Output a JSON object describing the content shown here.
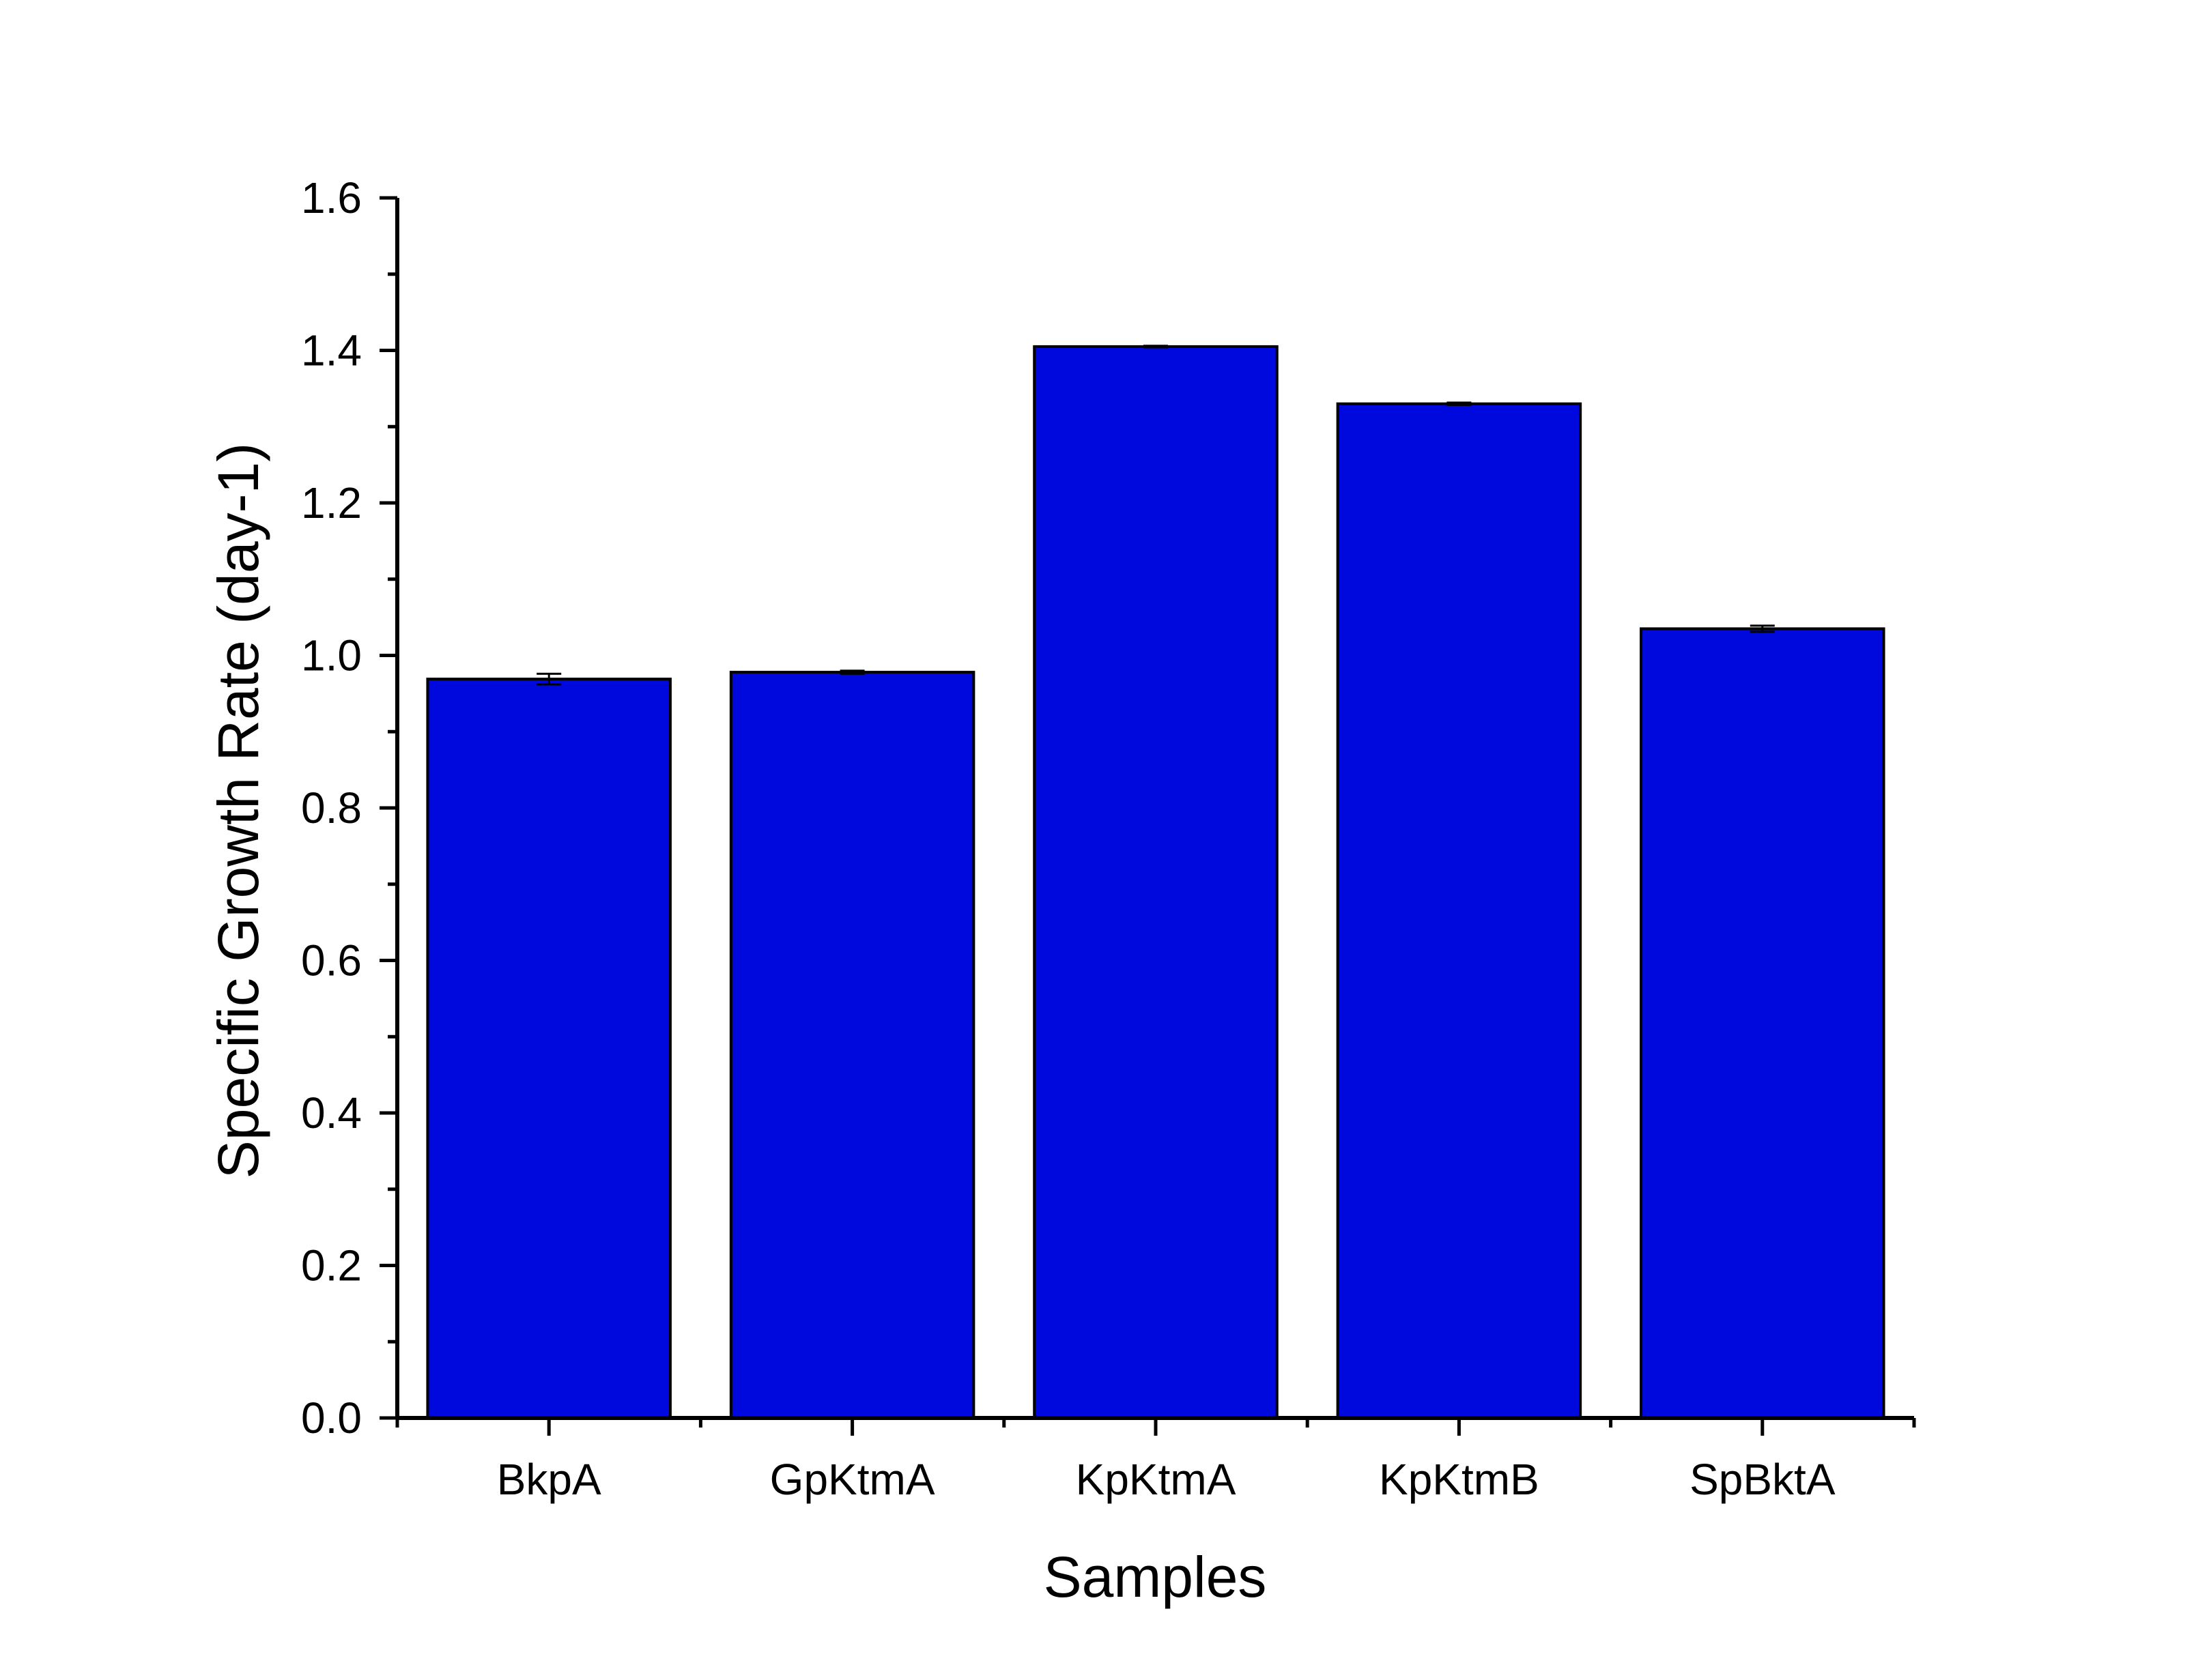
{
  "chart_data": {
    "type": "bar",
    "title": "",
    "xlabel": "Samples",
    "ylabel": "Specific Growth Rate (day-1)",
    "categories": [
      "BkpA",
      "GpKtmA",
      "KpKtmA",
      "KpKtmB",
      "SpBktA"
    ],
    "values": [
      0.969,
      0.978,
      1.405,
      1.33,
      1.035
    ],
    "errors": [
      0.007,
      0.002,
      0.001,
      0.0015,
      0.004
    ],
    "ylim": [
      0,
      1.6
    ],
    "yticks": [
      "0.0",
      "0.2",
      "0.4",
      "0.6",
      "0.8",
      "1.0",
      "1.2",
      "1.4",
      "1.6"
    ],
    "grid": false,
    "legend": "none",
    "bar_color": "#0009DD",
    "edge_color": "#000000"
  }
}
